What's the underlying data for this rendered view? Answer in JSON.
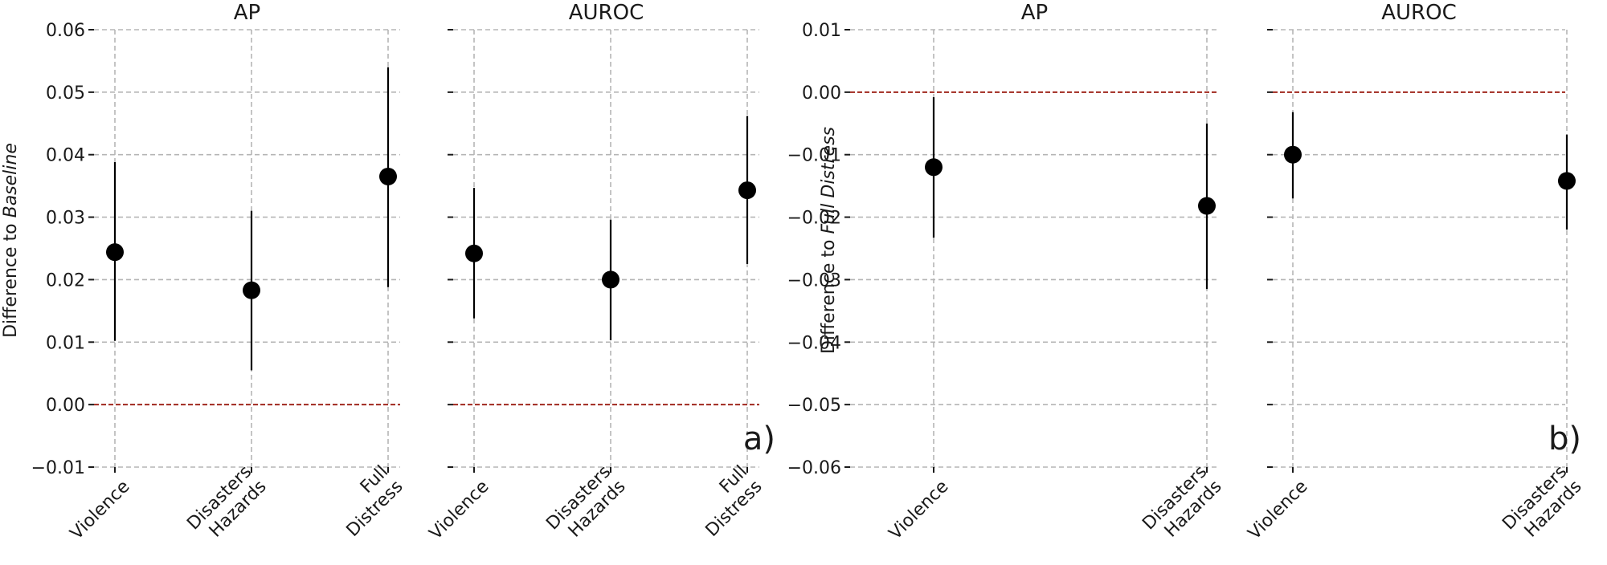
{
  "chart_data": [
    {
      "type": "scatter",
      "title": "AP",
      "ylabel_prefix": "Difference to ",
      "ylabel_emph": "Baseline",
      "ylim": [
        -0.01,
        0.06
      ],
      "yticks": [
        -0.01,
        0.0,
        0.01,
        0.02,
        0.03,
        0.04,
        0.05,
        0.06
      ],
      "ytick_labels": [
        "−0.01",
        "0.00",
        "0.01",
        "0.02",
        "0.03",
        "0.04",
        "0.05",
        "0.06"
      ],
      "reference_line": 0.0,
      "reference_color": "#a0281e",
      "grid": true,
      "categories": [
        [
          "Violence"
        ],
        [
          "Disasters",
          "Hazards"
        ],
        [
          "Full",
          "Distress"
        ]
      ],
      "points": [
        {
          "y": 0.0244,
          "lo": 0.0102,
          "hi": 0.0388
        },
        {
          "y": 0.0183,
          "lo": 0.0055,
          "hi": 0.031
        },
        {
          "y": 0.0365,
          "lo": 0.0188,
          "hi": 0.054
        }
      ]
    },
    {
      "type": "scatter",
      "title": "AUROC",
      "ylim": [
        -0.01,
        0.06
      ],
      "reference_line": 0.0,
      "reference_color": "#a0281e",
      "grid": true,
      "corner_label": "a)",
      "categories": [
        [
          "Violence"
        ],
        [
          "Disasters",
          "Hazards"
        ],
        [
          "Full",
          "Distress"
        ]
      ],
      "points": [
        {
          "y": 0.0242,
          "lo": 0.0138,
          "hi": 0.0347
        },
        {
          "y": 0.02,
          "lo": 0.0103,
          "hi": 0.0296
        },
        {
          "y": 0.0343,
          "lo": 0.0225,
          "hi": 0.0462
        }
      ]
    },
    {
      "type": "scatter",
      "title": "AP",
      "ylabel_prefix": "Difference to ",
      "ylabel_emph": "Full  Distress",
      "ylim": [
        -0.06,
        0.01
      ],
      "yticks": [
        -0.06,
        -0.05,
        -0.04,
        -0.03,
        -0.02,
        -0.01,
        0.0,
        0.01
      ],
      "ytick_labels": [
        "−0.06",
        "−0.05",
        "−0.04",
        "−0.03",
        "−0.02",
        "−0.01",
        "0.00",
        "0.01"
      ],
      "reference_line": 0.0,
      "reference_color": "#a0281e",
      "grid": true,
      "categories": [
        [
          "Violence"
        ],
        [
          "Disasters",
          "Hazards"
        ]
      ],
      "points": [
        {
          "y": -0.012,
          "lo": -0.0233,
          "hi": -0.0008
        },
        {
          "y": -0.0182,
          "lo": -0.0315,
          "hi": -0.005
        }
      ]
    },
    {
      "type": "scatter",
      "title": "AUROC",
      "ylim": [
        -0.06,
        0.01
      ],
      "reference_line": 0.0,
      "reference_color": "#a0281e",
      "grid": true,
      "corner_label": "b)",
      "categories": [
        [
          "Violence"
        ],
        [
          "Disasters",
          "Hazards"
        ]
      ],
      "points": [
        {
          "y": -0.01,
          "lo": -0.017,
          "hi": -0.0032
        },
        {
          "y": -0.0142,
          "lo": -0.022,
          "hi": -0.0068
        }
      ]
    }
  ]
}
